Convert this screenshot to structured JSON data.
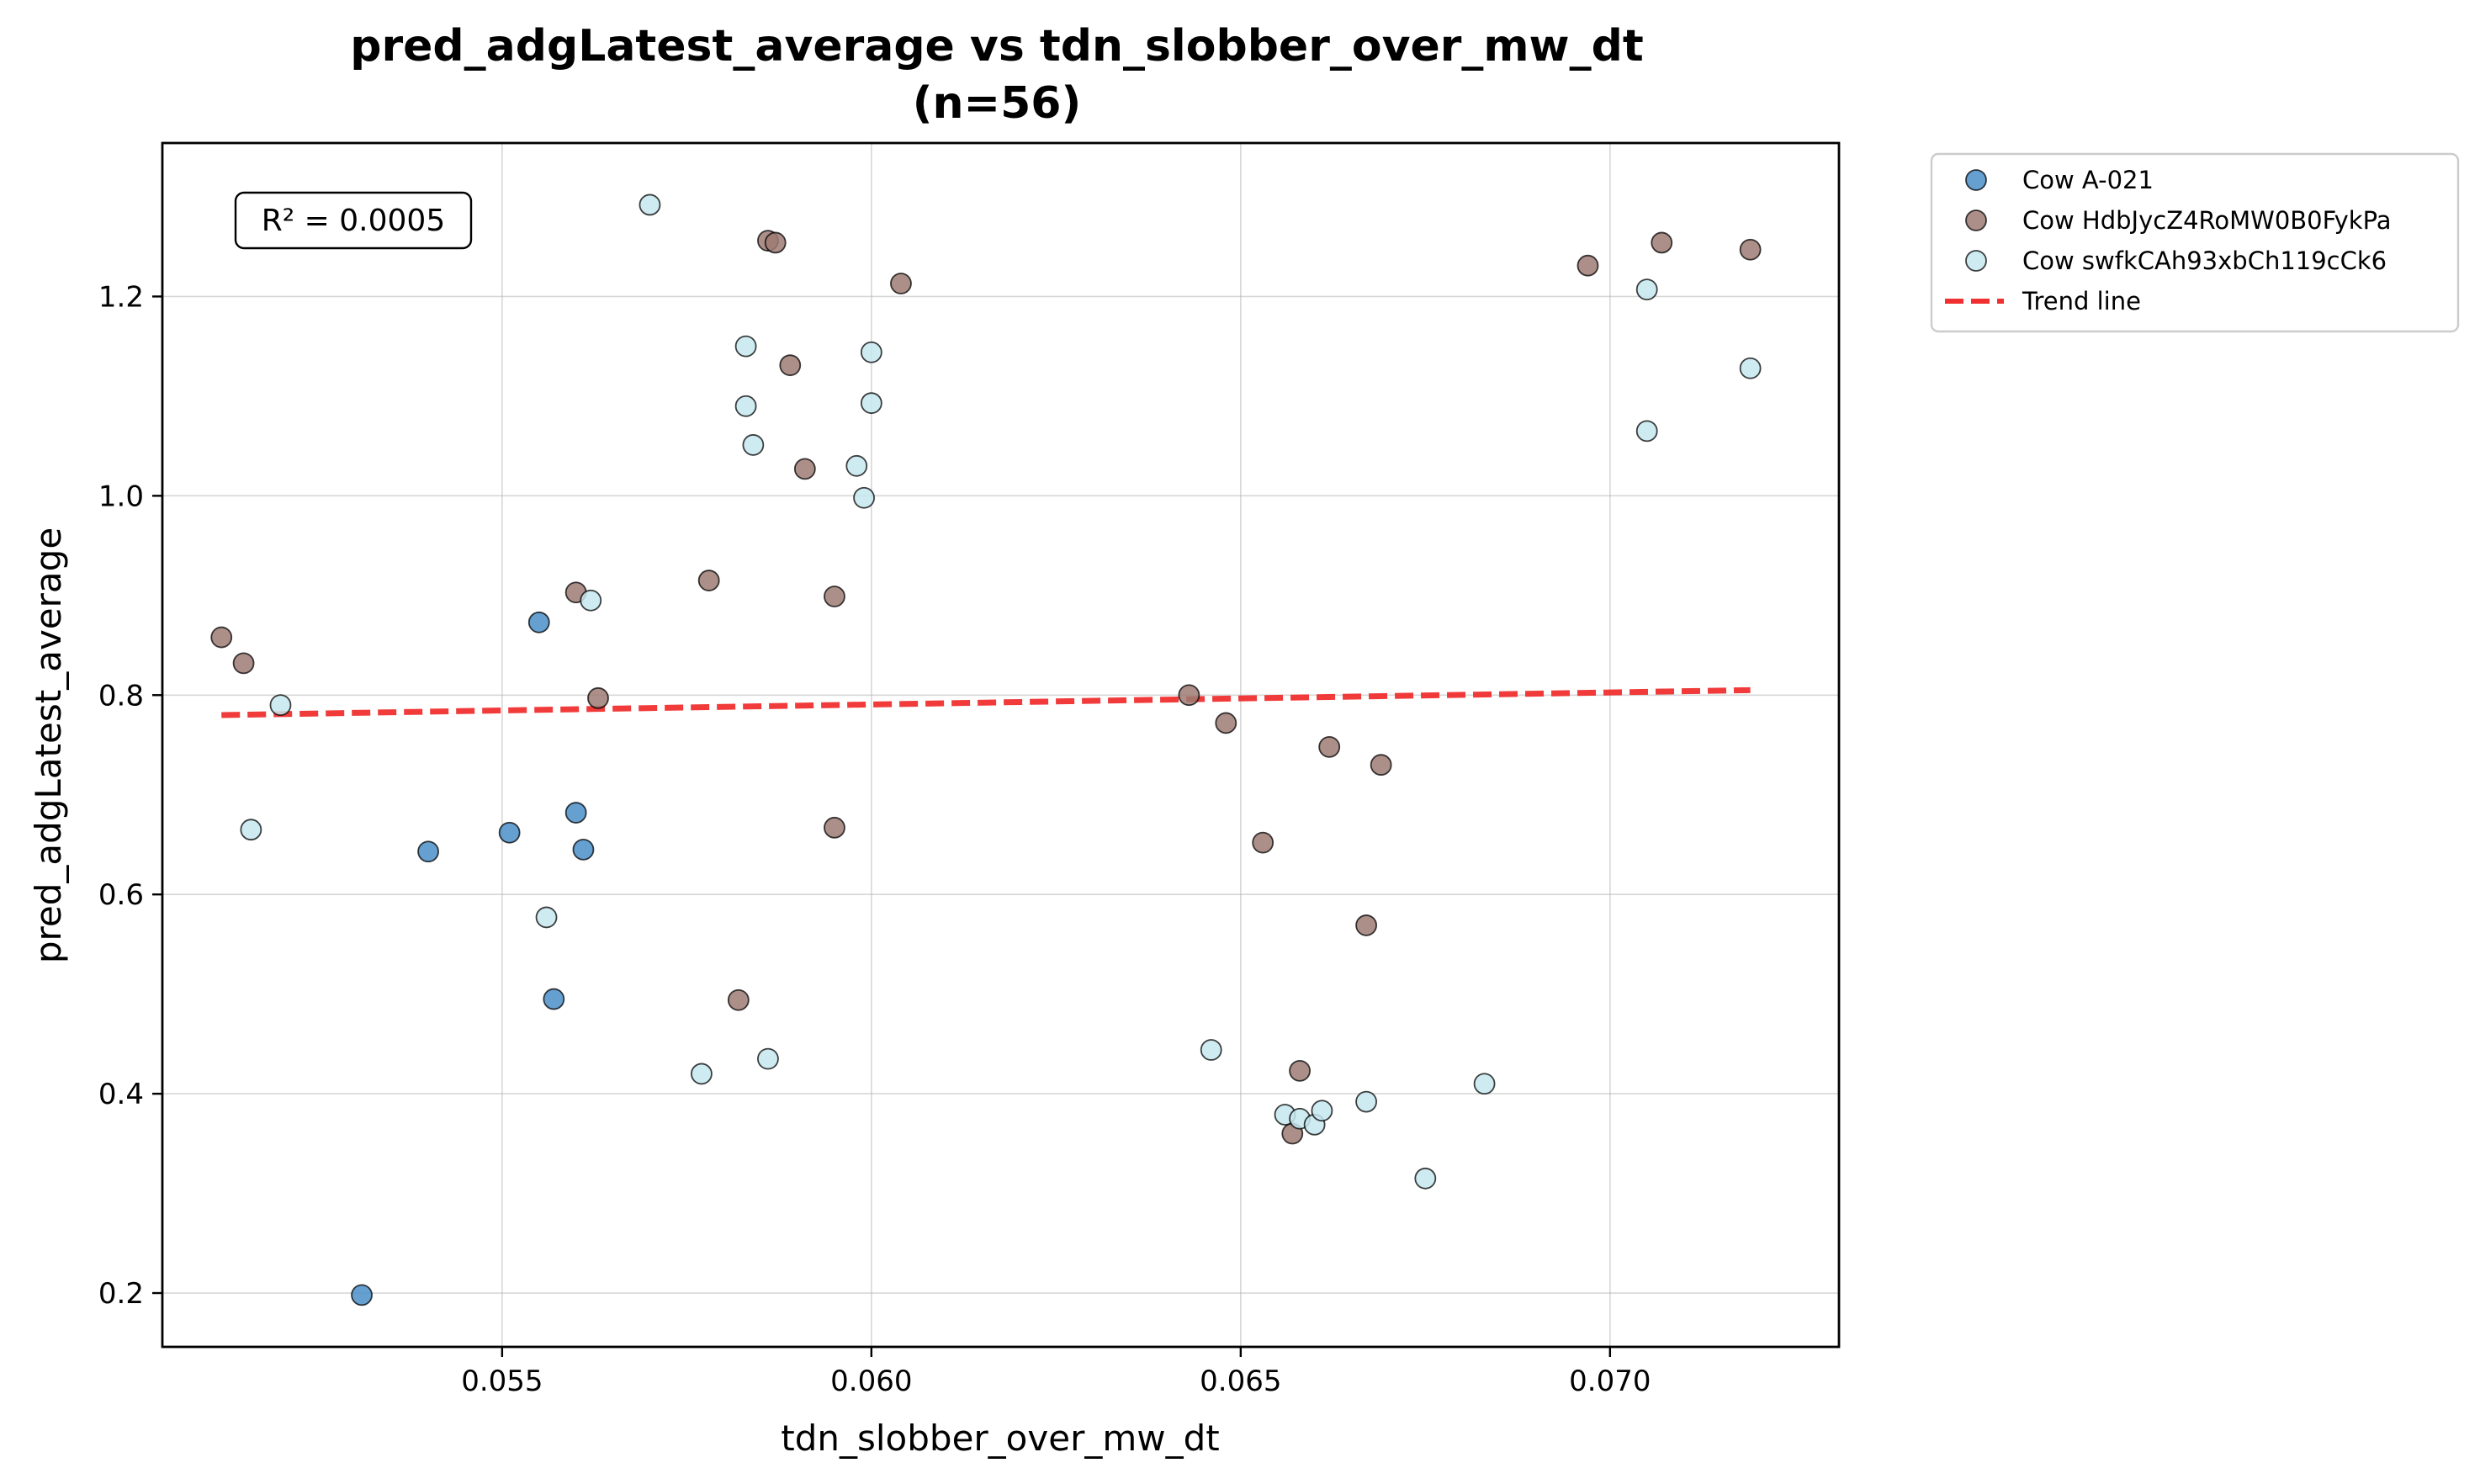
{
  "chart_data": {
    "type": "scatter",
    "title": "pred_adgLatest_average vs tdn_slobber_over_mw_dt",
    "subtitle": "(n=56)",
    "xlabel": "tdn_slobber_over_mw_dt",
    "ylabel": "pred_adgLatest_average",
    "xlim": [
      0.0504,
      0.0731
    ],
    "ylim": [
      0.146,
      1.354
    ],
    "x_ticks": [
      0.055,
      0.06,
      0.065,
      0.07
    ],
    "x_tick_labels": [
      "0.055",
      "0.060",
      "0.065",
      "0.070"
    ],
    "y_ticks": [
      0.2,
      0.4,
      0.6,
      0.8,
      1.0,
      1.2
    ],
    "y_tick_labels": [
      "0.2",
      "0.4",
      "0.6",
      "0.8",
      "1.0",
      "1.2"
    ],
    "grid": true,
    "legend_position": "outside-top-right",
    "annotation": "R² = 0.0005",
    "series": [
      {
        "name": "Cow A-021",
        "color": "#4a8fc9",
        "points": [
          [
            0.0531,
            0.198
          ],
          [
            0.054,
            0.643
          ],
          [
            0.0551,
            0.662
          ],
          [
            0.0555,
            0.873
          ],
          [
            0.0557,
            0.495
          ],
          [
            0.056,
            0.682
          ],
          [
            0.0561,
            0.645
          ]
        ]
      },
      {
        "name": "Cow HdbJycZ4RoMW0B0FykPa",
        "color": "#9e7b73",
        "points": [
          [
            0.0512,
            0.858
          ],
          [
            0.0515,
            0.832
          ],
          [
            0.056,
            0.903
          ],
          [
            0.0563,
            0.797
          ],
          [
            0.0578,
            0.915
          ],
          [
            0.0582,
            0.494
          ],
          [
            0.0586,
            1.256
          ],
          [
            0.0587,
            1.254
          ],
          [
            0.0589,
            1.131
          ],
          [
            0.0591,
            1.027
          ],
          [
            0.0595,
            0.899
          ],
          [
            0.0595,
            0.667
          ],
          [
            0.0604,
            1.213
          ],
          [
            0.0643,
            0.8
          ],
          [
            0.0648,
            0.772
          ],
          [
            0.0653,
            0.652
          ],
          [
            0.0657,
            0.36
          ],
          [
            0.0658,
            0.423
          ],
          [
            0.0662,
            0.748
          ],
          [
            0.0667,
            0.569
          ],
          [
            0.0669,
            0.73
          ],
          [
            0.0697,
            1.231
          ],
          [
            0.0707,
            1.254
          ],
          [
            0.0719,
            1.247
          ]
        ]
      },
      {
        "name": "Cow swfkCAh93xbCh119cCk6",
        "color": "#c5e8ef",
        "points": [
          [
            0.0516,
            0.665
          ],
          [
            0.052,
            0.79
          ],
          [
            0.0556,
            0.577
          ],
          [
            0.0562,
            0.895
          ],
          [
            0.057,
            1.292
          ],
          [
            0.0577,
            0.42
          ],
          [
            0.0583,
            1.15
          ],
          [
            0.0583,
            1.09
          ],
          [
            0.0584,
            1.051
          ],
          [
            0.0586,
            0.435
          ],
          [
            0.0598,
            1.03
          ],
          [
            0.0599,
            0.998
          ],
          [
            0.06,
            1.144
          ],
          [
            0.06,
            1.093
          ],
          [
            0.0646,
            0.444
          ],
          [
            0.0656,
            0.379
          ],
          [
            0.0658,
            0.375
          ],
          [
            0.066,
            0.369
          ],
          [
            0.0661,
            0.383
          ],
          [
            0.0667,
            0.392
          ],
          [
            0.0675,
            0.315
          ],
          [
            0.0683,
            0.41
          ],
          [
            0.0705,
            1.207
          ],
          [
            0.0705,
            1.065
          ],
          [
            0.0719,
            1.128
          ]
        ]
      }
    ],
    "trend_line": {
      "name": "Trend line",
      "color": "#f03030",
      "style": "dashed",
      "x": [
        0.0512,
        0.0719
      ],
      "y": [
        0.78,
        0.805
      ]
    }
  }
}
